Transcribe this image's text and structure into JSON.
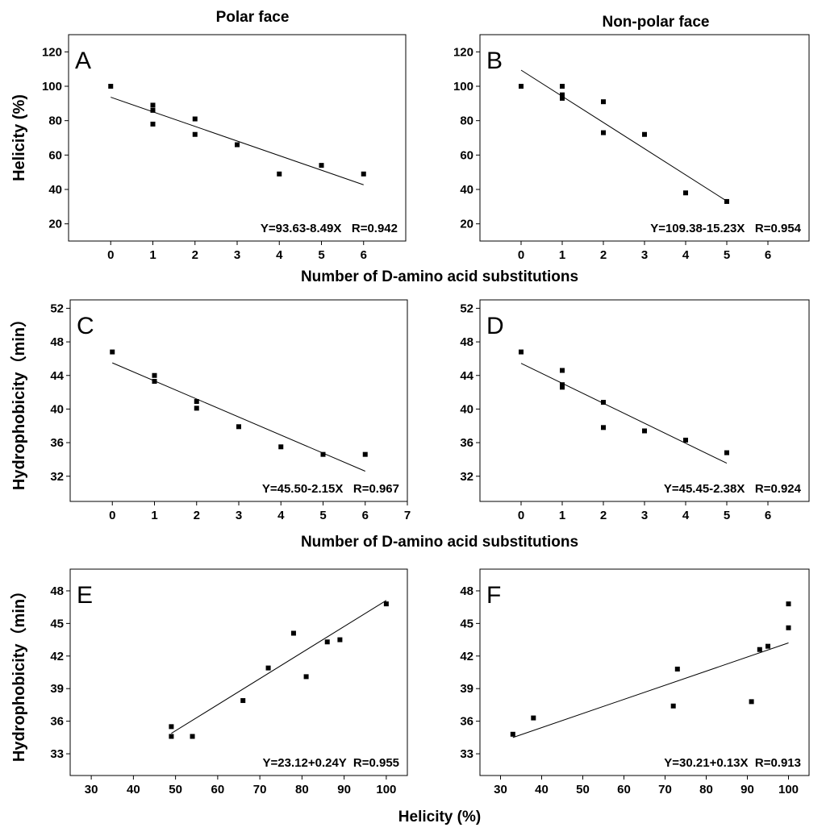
{
  "figure": {
    "column_titles": [
      "Polar face",
      "Non-polar face"
    ],
    "shared_xlabels": [
      "Number of D-amino acid substitutions",
      "Number of D-amino acid substitutions",
      "Helicity (%)"
    ]
  },
  "chart_data": [
    {
      "panel": "A",
      "type": "scatter",
      "ylabel": "Helicity (%)",
      "xlim": [
        -1,
        7
      ],
      "ylim": [
        10,
        130
      ],
      "xticks": [
        0,
        1,
        2,
        3,
        4,
        5,
        6
      ],
      "yticks": [
        20,
        40,
        60,
        80,
        100,
        120
      ],
      "points": [
        [
          0,
          100
        ],
        [
          1,
          89
        ],
        [
          1,
          86
        ],
        [
          1,
          78
        ],
        [
          2,
          81
        ],
        [
          2,
          72
        ],
        [
          3,
          66
        ],
        [
          4,
          49
        ],
        [
          5,
          54
        ],
        [
          6,
          49
        ]
      ],
      "fit": {
        "intercept": 93.63,
        "slope": -8.49,
        "x_range": [
          0,
          6
        ]
      },
      "equation": "Y=93.63-8.49X   R=0.942"
    },
    {
      "panel": "B",
      "type": "scatter",
      "ylabel": "",
      "xlim": [
        -1,
        7
      ],
      "ylim": [
        10,
        130
      ],
      "xticks": [
        0,
        1,
        2,
        3,
        4,
        5,
        6
      ],
      "yticks": [
        20,
        40,
        60,
        80,
        100,
        120
      ],
      "points": [
        [
          0,
          100
        ],
        [
          1,
          100
        ],
        [
          1,
          95
        ],
        [
          1,
          93
        ],
        [
          2,
          91
        ],
        [
          2,
          73
        ],
        [
          3,
          72
        ],
        [
          4,
          38
        ],
        [
          5,
          33
        ]
      ],
      "fit": {
        "intercept": 109.38,
        "slope": -15.23,
        "x_range": [
          0,
          5
        ]
      },
      "equation": "Y=109.38-15.23X   R=0.954"
    },
    {
      "panel": "C",
      "type": "scatter",
      "ylabel": "Hydrophobicity（min）",
      "xlim": [
        -1,
        7
      ],
      "ylim": [
        29,
        53
      ],
      "xticks": [
        0,
        1,
        2,
        3,
        4,
        5,
        6,
        7
      ],
      "yticks": [
        32,
        36,
        40,
        44,
        48,
        52
      ],
      "points": [
        [
          0,
          46.8
        ],
        [
          1,
          44.0
        ],
        [
          1,
          43.3
        ],
        [
          2,
          40.9
        ],
        [
          2,
          40.1
        ],
        [
          3,
          37.9
        ],
        [
          4,
          35.5
        ],
        [
          5,
          34.6
        ],
        [
          6,
          34.6
        ]
      ],
      "fit": {
        "intercept": 45.5,
        "slope": -2.15,
        "x_range": [
          0,
          6
        ]
      },
      "equation": "Y=45.50-2.15X   R=0.967"
    },
    {
      "panel": "D",
      "type": "scatter",
      "ylabel": "",
      "xlim": [
        -1,
        7
      ],
      "ylim": [
        29,
        53
      ],
      "xticks": [
        0,
        1,
        2,
        3,
        4,
        5,
        6
      ],
      "yticks": [
        32,
        36,
        40,
        44,
        48,
        52
      ],
      "points": [
        [
          0,
          46.8
        ],
        [
          1,
          44.6
        ],
        [
          1,
          42.9
        ],
        [
          1,
          42.6
        ],
        [
          2,
          40.8
        ],
        [
          2,
          37.8
        ],
        [
          3,
          37.4
        ],
        [
          4,
          36.3
        ],
        [
          5,
          34.8
        ]
      ],
      "fit": {
        "intercept": 45.45,
        "slope": -2.38,
        "x_range": [
          0,
          5
        ]
      },
      "equation": "Y=45.45-2.38X   R=0.924"
    },
    {
      "panel": "E",
      "type": "scatter",
      "ylabel": "Hydrophobicity（min）",
      "xlim": [
        25,
        105
      ],
      "ylim": [
        31,
        50
      ],
      "xticks": [
        30,
        40,
        50,
        60,
        70,
        80,
        90,
        100
      ],
      "yticks": [
        33,
        36,
        39,
        42,
        45,
        48
      ],
      "points": [
        [
          49,
          35.5
        ],
        [
          49,
          34.6
        ],
        [
          54,
          34.6
        ],
        [
          66,
          37.9
        ],
        [
          72,
          40.9
        ],
        [
          78,
          44.1
        ],
        [
          81,
          40.1
        ],
        [
          86,
          43.3
        ],
        [
          89,
          43.5
        ],
        [
          100,
          46.8
        ]
      ],
      "fit": {
        "intercept": 23.12,
        "slope": 0.24,
        "x_range": [
          49,
          100
        ]
      },
      "equation": "Y=23.12+0.24Y  R=0.955"
    },
    {
      "panel": "F",
      "type": "scatter",
      "ylabel": "",
      "xlim": [
        25,
        105
      ],
      "ylim": [
        31,
        50
      ],
      "xticks": [
        30,
        40,
        50,
        60,
        70,
        80,
        90,
        100
      ],
      "yticks": [
        33,
        36,
        39,
        42,
        45,
        48
      ],
      "points": [
        [
          33,
          34.8
        ],
        [
          38,
          36.3
        ],
        [
          72,
          37.4
        ],
        [
          73,
          40.8
        ],
        [
          91,
          37.8
        ],
        [
          93,
          42.6
        ],
        [
          95,
          42.9
        ],
        [
          100,
          44.6
        ],
        [
          100,
          46.8
        ]
      ],
      "fit": {
        "intercept": 30.21,
        "slope": 0.13,
        "x_range": [
          33,
          100
        ]
      },
      "equation": "Y=30.21+0.13X  R=0.913"
    }
  ]
}
